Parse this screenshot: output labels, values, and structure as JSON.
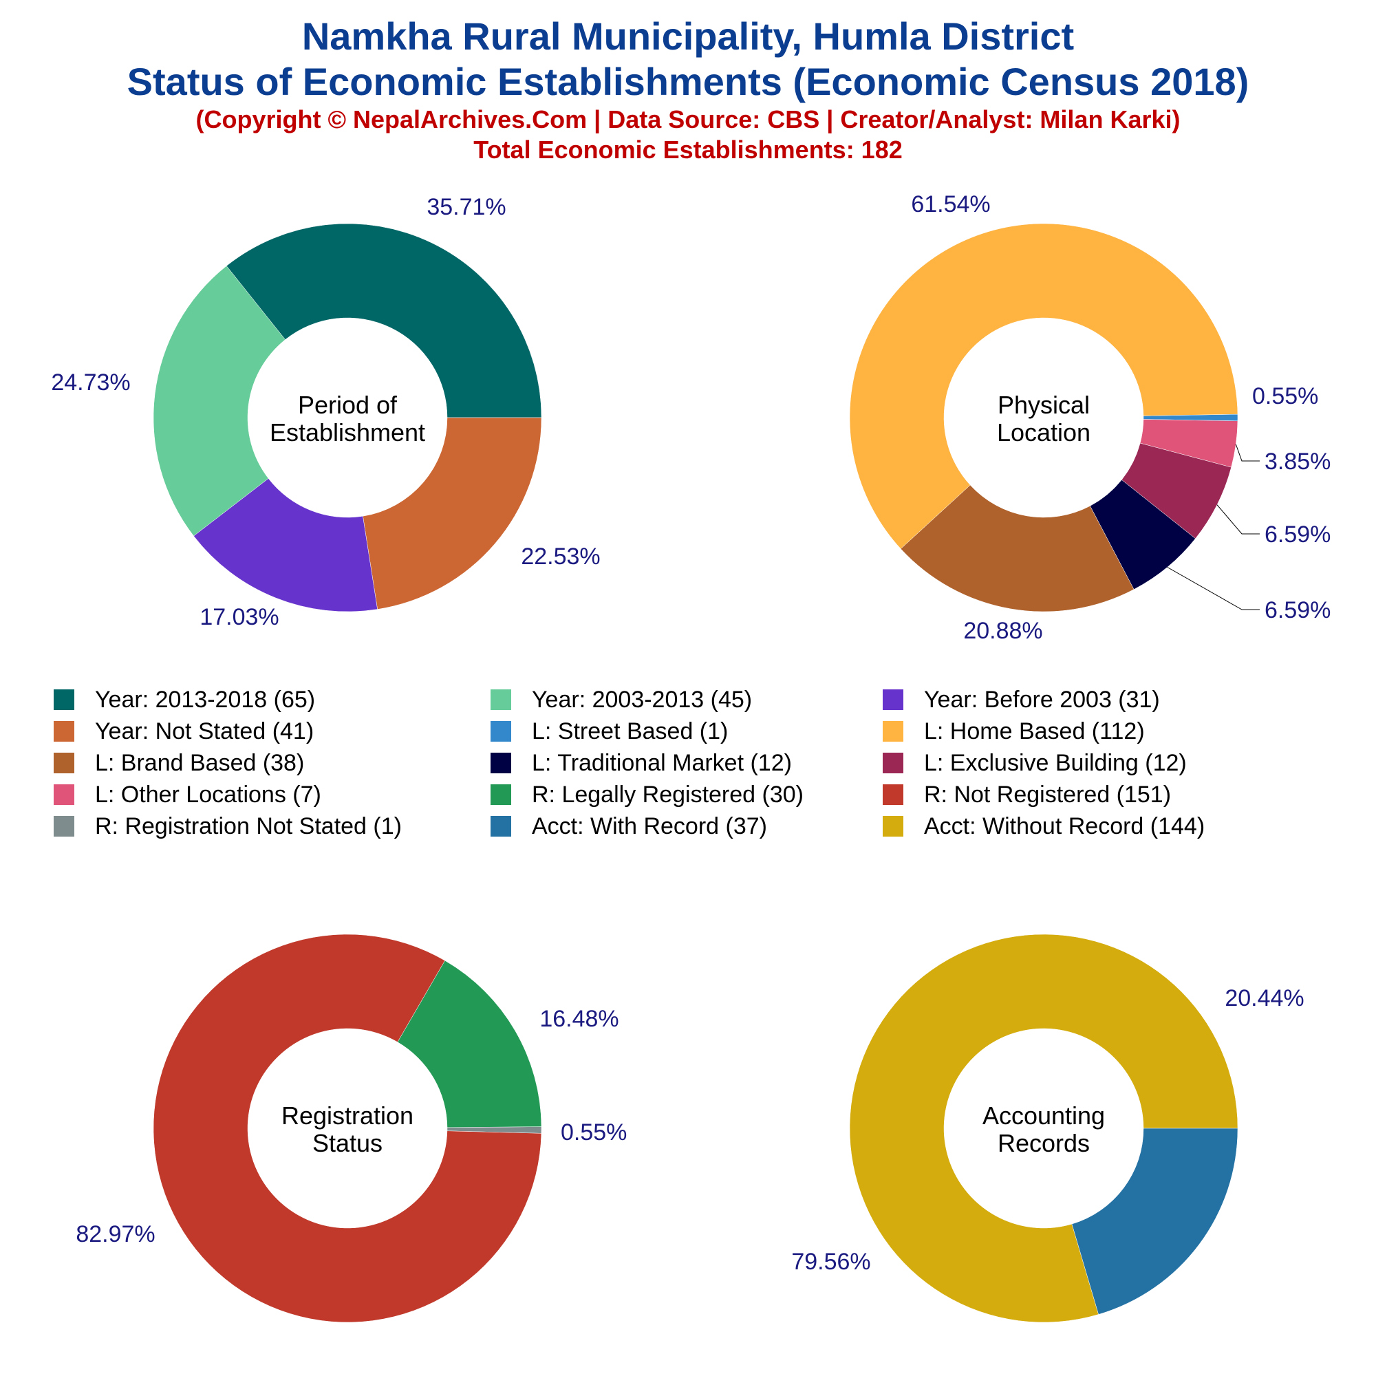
{
  "title": {
    "line1": "Namkha Rural Municipality, Humla District",
    "line2": "Status of Economic Establishments (Economic Census 2018)",
    "copyright": "(Copyright © NepalArchives.Com | Data Source: CBS | Creator/Analyst: Milan Karki)",
    "total": "Total Economic Establishments: 182"
  },
  "colors": {
    "title": "#0b3d91",
    "subtitle": "#c00000",
    "percent_label": "#1a1a80"
  },
  "legend": [
    {
      "label": "Year: 2013-2018 (65)",
      "color": "#006666"
    },
    {
      "label": "Year: 2003-2013 (45)",
      "color": "#66cc99"
    },
    {
      "label": "Year: Before 2003 (31)",
      "color": "#6633cc"
    },
    {
      "label": "Year: Not Stated (41)",
      "color": "#cc6633"
    },
    {
      "label": "L: Street Based (1)",
      "color": "#3388cc"
    },
    {
      "label": "L: Home Based (112)",
      "color": "#ffb340"
    },
    {
      "label": "L: Brand Based (38)",
      "color": "#b0622d"
    },
    {
      "label": "L: Traditional Market (12)",
      "color": "#000044"
    },
    {
      "label": "L: Exclusive Building (12)",
      "color": "#9b2755"
    },
    {
      "label": "L: Other Locations (7)",
      "color": "#e0547a"
    },
    {
      "label": "R: Legally Registered (30)",
      "color": "#229955"
    },
    {
      "label": "R: Not Registered (151)",
      "color": "#c0392b"
    },
    {
      "label": "R: Registration Not Stated (1)",
      "color": "#7f8c8d"
    },
    {
      "label": "Acct: With Record (37)",
      "color": "#2471a3"
    },
    {
      "label": "Acct: Without Record (144)",
      "color": "#d4ac0d"
    }
  ],
  "chart_data": [
    {
      "type": "pie",
      "center_label": [
        "Period of",
        "Establishment"
      ],
      "slices": [
        {
          "category": "Year: 2013-2018",
          "value": 65,
          "percent_label": "35.71%",
          "color": "#006666"
        },
        {
          "category": "Year: Not Stated",
          "value": 41,
          "percent_label": "22.53%",
          "color": "#cc6633"
        },
        {
          "category": "Year: Before 2003",
          "value": 31,
          "percent_label": "17.03%",
          "color": "#6633cc"
        },
        {
          "category": "Year: 2003-2013",
          "value": 45,
          "percent_label": "24.73%",
          "color": "#66cc99"
        }
      ]
    },
    {
      "type": "pie",
      "center_label": [
        "Physical",
        "Location"
      ],
      "slices": [
        {
          "category": "L: Street Based",
          "value": 1,
          "percent_label": "0.55%",
          "color": "#3388cc"
        },
        {
          "category": "L: Other Locations",
          "value": 7,
          "percent_label": "3.85%",
          "color": "#e0547a"
        },
        {
          "category": "L: Exclusive Building",
          "value": 12,
          "percent_label": "6.59%",
          "color": "#9b2755"
        },
        {
          "category": "L: Traditional Market",
          "value": 12,
          "percent_label": "6.59%",
          "color": "#000044"
        },
        {
          "category": "L: Brand Based",
          "value": 38,
          "percent_label": "20.88%",
          "color": "#b0622d"
        },
        {
          "category": "L: Home Based",
          "value": 112,
          "percent_label": "61.54%",
          "color": "#ffb340"
        }
      ]
    },
    {
      "type": "pie",
      "center_label": [
        "Registration",
        "Status"
      ],
      "slices": [
        {
          "category": "R: Registration Not Stated",
          "value": 1,
          "percent_label": "0.55%",
          "color": "#7f8c8d"
        },
        {
          "category": "R: Not Registered",
          "value": 151,
          "percent_label": "82.97%",
          "color": "#c0392b"
        },
        {
          "category": "R: Legally Registered",
          "value": 30,
          "percent_label": "16.48%",
          "color": "#229955"
        }
      ]
    },
    {
      "type": "pie",
      "center_label": [
        "Accounting",
        "Records"
      ],
      "slices": [
        {
          "category": "Acct: Without Record",
          "value": 144,
          "percent_label": "79.56%",
          "color": "#d4ac0d"
        },
        {
          "category": "Acct: With Record",
          "value": 37,
          "percent_label": "20.44%",
          "color": "#2471a3"
        }
      ]
    }
  ]
}
